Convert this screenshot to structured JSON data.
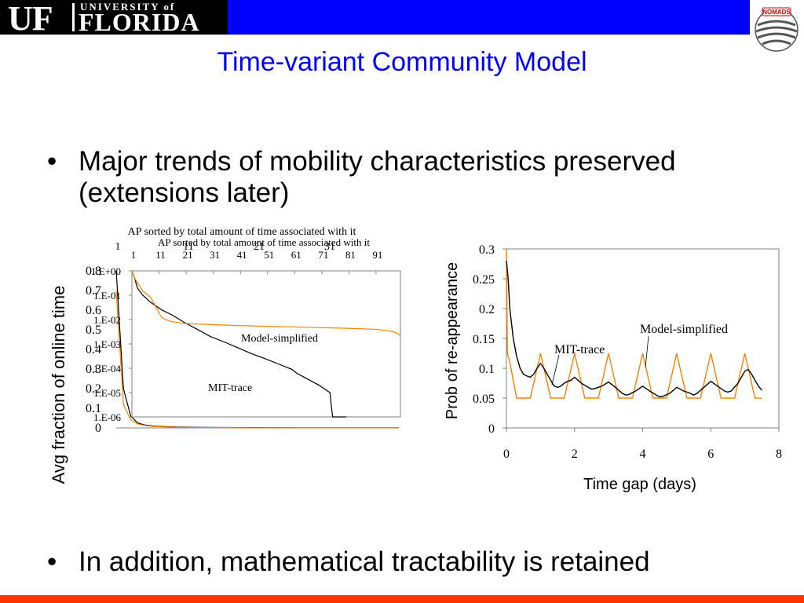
{
  "header": {
    "logo_uf": "UF",
    "logo_university": "UNIVERSITY of",
    "logo_florida": "FLORIDA",
    "logo_nomads": "NOMADS",
    "bar_color": "#0000ff",
    "accent_color": "#ff3300"
  },
  "slide": {
    "title": "Time-variant Community Model",
    "bullets": [
      {
        "marker": "•",
        "text": "Major trends of mobility characteristics preserved (extensions later)"
      },
      {
        "marker": "•",
        "text": "In addition, mathematical tractability is retained"
      }
    ]
  },
  "chart_data": [
    {
      "type": "line",
      "title": "AP sorted by total amount of time associated with it",
      "ylabel": "Avg fraction of online time",
      "x_tick_labels": [
        "1",
        "11",
        "21",
        "31"
      ],
      "y_tick_labels": [
        "0",
        "0.1",
        "0.2",
        "0.3",
        "0.4",
        "0.5",
        "0.6",
        "0.7",
        "0.8"
      ],
      "xlim": [
        1,
        40
      ],
      "ylim": [
        0,
        0.8
      ],
      "series": [
        {
          "color": "#000000",
          "x": [
            1,
            2,
            3,
            4,
            5,
            6,
            8,
            10,
            13,
            16,
            20,
            25,
            30,
            35,
            40
          ],
          "y": [
            0.8,
            0.2,
            0.06,
            0.025,
            0.015,
            0.01,
            0.006,
            0.004,
            0.003,
            0.002,
            0.0015,
            0.001,
            0.001,
            0.001,
            0.001
          ]
        },
        {
          "color": "#ff8000",
          "x": [
            1,
            2,
            3,
            4,
            5,
            6,
            8,
            10,
            13,
            16,
            20,
            25,
            30,
            35,
            40
          ],
          "y": [
            0.7,
            0.12,
            0.04,
            0.02,
            0.012,
            0.008,
            0.005,
            0.003,
            0.002,
            0.0015,
            0.001,
            0.001,
            0.001,
            0.001,
            0.001
          ]
        }
      ]
    },
    {
      "type": "line",
      "title": "AP sorted by total amount of time associated with it",
      "x_tick_labels": [
        "1",
        "11",
        "21",
        "31",
        "41",
        "51",
        "61",
        "71",
        "81",
        "91"
      ],
      "y_tick_labels": [
        "1.E-06",
        "1.E-05",
        "1.E-04",
        "1.E-03",
        "1.E-02",
        "1.E-01",
        "1.E+00"
      ],
      "y_scale": "log",
      "xlim": [
        1,
        100
      ],
      "ylim": [
        1e-06,
        1
      ],
      "series": [
        {
          "name": "MIT-trace",
          "color": "#000000",
          "x": [
            1,
            2,
            3,
            5,
            8,
            12,
            16,
            20,
            25,
            30,
            35,
            40,
            45,
            50,
            55,
            60,
            62,
            65,
            70,
            74,
            75,
            80
          ],
          "y": [
            1.0,
            0.5,
            0.2,
            0.1,
            0.05,
            0.025,
            0.015,
            0.008,
            0.004,
            0.002,
            0.0012,
            0.0007,
            0.0004,
            0.00025,
            0.00015,
            9e-05,
            6e-05,
            4e-05,
            2e-05,
            1e-05,
            1e-06,
            1e-06
          ]
        },
        {
          "name": "Model-simplified",
          "color": "#ff8000",
          "x": [
            1,
            2,
            5,
            8,
            10,
            12,
            15,
            20,
            30,
            40,
            50,
            60,
            70,
            80,
            90,
            95,
            98,
            100
          ],
          "y": [
            1.0,
            0.5,
            0.15,
            0.08,
            0.03,
            0.012,
            0.0085,
            0.007,
            0.0062,
            0.0057,
            0.0053,
            0.005,
            0.0047,
            0.0044,
            0.004,
            0.0036,
            0.003,
            0.0022
          ]
        }
      ]
    },
    {
      "type": "line",
      "xlabel": "Time gap (days)",
      "ylabel": "Prob of re-appearance",
      "x_tick_labels": [
        "0",
        "2",
        "4",
        "6",
        "8"
      ],
      "y_tick_labels": [
        "0",
        "0.05",
        "0.1",
        "0.15",
        "0.2",
        "0.25",
        "0.3"
      ],
      "xlim": [
        0,
        8
      ],
      "ylim": [
        0,
        0.3
      ],
      "series": [
        {
          "name": "MIT-trace",
          "color": "#000000",
          "x": [
            0,
            0.05,
            0.1,
            0.2,
            0.3,
            0.4,
            0.5,
            0.6,
            0.7,
            0.8,
            0.9,
            1.0,
            1.1,
            1.2,
            1.3,
            1.4,
            1.5,
            1.6,
            1.7,
            1.8,
            1.9,
            2.0,
            2.1,
            2.2,
            2.4,
            2.5,
            2.6,
            2.8,
            3.0,
            3.2,
            3.4,
            3.5,
            3.6,
            3.8,
            4.0,
            4.2,
            4.4,
            4.5,
            4.6,
            4.8,
            5.0,
            5.2,
            5.4,
            5.5,
            5.6,
            5.8,
            6.0,
            6.2,
            6.4,
            6.5,
            6.6,
            6.8,
            7.0,
            7.1,
            7.2,
            7.3,
            7.4,
            7.5
          ],
          "y": [
            0.28,
            0.25,
            0.2,
            0.15,
            0.12,
            0.1,
            0.09,
            0.087,
            0.085,
            0.09,
            0.1,
            0.108,
            0.1,
            0.09,
            0.08,
            0.07,
            0.068,
            0.07,
            0.075,
            0.078,
            0.08,
            0.085,
            0.08,
            0.075,
            0.068,
            0.065,
            0.066,
            0.07,
            0.077,
            0.068,
            0.058,
            0.055,
            0.056,
            0.062,
            0.07,
            0.062,
            0.055,
            0.052,
            0.053,
            0.058,
            0.068,
            0.062,
            0.058,
            0.055,
            0.058,
            0.068,
            0.078,
            0.07,
            0.062,
            0.06,
            0.062,
            0.075,
            0.095,
            0.098,
            0.09,
            0.08,
            0.07,
            0.063
          ]
        },
        {
          "name": "Model-simplified",
          "color": "#ff8000",
          "x": [
            0,
            0.03,
            0.1,
            0.2,
            0.3,
            0.4,
            0.5,
            0.7,
            1.0,
            1.3,
            1.5,
            1.7,
            2.0,
            2.3,
            2.5,
            2.7,
            3.0,
            3.3,
            3.5,
            3.7,
            4.0,
            4.3,
            4.5,
            4.7,
            5.0,
            5.3,
            5.5,
            5.7,
            6.0,
            6.3,
            6.5,
            6.7,
            7.0,
            7.3,
            7.5
          ],
          "y": [
            0.3,
            0.125,
            0.11,
            0.08,
            0.05,
            0.05,
            0.05,
            0.05,
            0.125,
            0.05,
            0.05,
            0.05,
            0.125,
            0.05,
            0.05,
            0.05,
            0.125,
            0.05,
            0.05,
            0.05,
            0.125,
            0.05,
            0.05,
            0.05,
            0.125,
            0.05,
            0.05,
            0.05,
            0.125,
            0.05,
            0.05,
            0.05,
            0.125,
            0.05,
            0.05
          ]
        }
      ]
    }
  ]
}
